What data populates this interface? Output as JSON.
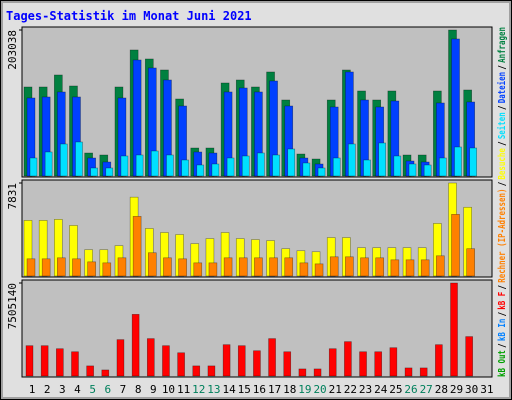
{
  "chart_data": [
    {
      "type": "bar",
      "title": "Tages-Statistik im Monat Juni 2021",
      "ylim": [
        0,
        203038
      ],
      "yticks": [
        203038
      ],
      "series": [
        {
          "name": "Anfragen",
          "color": "#008040",
          "values": [
            123799,
            123799,
            140491,
            125190,
            31993,
            29211,
            123799,
            175266,
            162747,
            147446,
            107107,
            38948,
            38948,
            129363,
            133536,
            123799,
            144664,
            105716,
            30602,
            23647,
            105716,
            147446,
            118235,
            105716,
            118235,
            29211,
            29211,
            118235,
            203038,
            119626,
            null
          ]
        },
        {
          "name": "Dateien",
          "color": "#0040ff",
          "values": [
            108498,
            109889,
            116844,
            109889,
            25038,
            19474,
            108498,
            161356,
            150228,
            133536,
            97370,
            33384,
            31993,
            116844,
            122408,
            116844,
            132145,
            97370,
            25038,
            16692,
            95979,
            144664,
            105716,
            95979,
            104325,
            20865,
            19474,
            101543,
            190567,
            102934,
            null
          ]
        },
        {
          "name": "Seiten",
          "color": "#00e0ff",
          "values": [
            25038,
            33384,
            44512,
            47294,
            11128,
            11128,
            27820,
            29211,
            34775,
            29211,
            22256,
            15301,
            16692,
            25038,
            27820,
            31993,
            29211,
            37557,
            18083,
            11128,
            25038,
            44512,
            22256,
            45903,
            27820,
            16692,
            15301,
            25038,
            40339,
            38948,
            null
          ]
        }
      ]
    },
    {
      "type": "bar",
      "ylim": [
        0,
        7831
      ],
      "yticks": [
        7831
      ],
      "series": [
        {
          "name": "Besuche",
          "color": "#ffff00",
          "values": [
            4682,
            4682,
            4767,
            4256,
            2213,
            2213,
            2554,
            6639,
            4001,
            3660,
            3490,
            2724,
            3149,
            3660,
            3149,
            3064,
            2979,
            2298,
            2128,
            2043,
            3235,
            3235,
            2383,
            2383,
            2383,
            2383,
            2383,
            4426,
            7831,
            5788,
            null
          ]
        },
        {
          "name": "Rechner (IP-Adressen)",
          "color": "#ff8000",
          "values": [
            1447,
            1447,
            1532,
            1447,
            1192,
            1107,
            1532,
            5022,
            1958,
            1532,
            1447,
            1107,
            1107,
            1532,
            1532,
            1532,
            1532,
            1532,
            1107,
            1021,
            1617,
            1617,
            1532,
            1532,
            1362,
            1362,
            1362,
            1702,
            5192,
            2298,
            null
          ]
        }
      ]
    },
    {
      "type": "bar",
      "ylim": [
        0,
        7505140
      ],
      "yticks": [
        7505140
      ],
      "categories": [
        "1",
        "2",
        "3",
        "4",
        "5",
        "6",
        "7",
        "8",
        "9",
        "10",
        "11",
        "12",
        "13",
        "14",
        "15",
        "16",
        "17",
        "18",
        "19",
        "20",
        "21",
        "22",
        "23",
        "24",
        "25",
        "26",
        "27",
        "28",
        "29",
        "30",
        "31"
      ],
      "category_colors": [
        "#000000",
        "#000000",
        "#000000",
        "#000000",
        "#00805c",
        "#00805c",
        "#000000",
        "#000000",
        "#000000",
        "#000000",
        "#000000",
        "#00805c",
        "#00805c",
        "#000000",
        "#000000",
        "#000000",
        "#000000",
        "#000000",
        "#00805c",
        "#00805c",
        "#000000",
        "#000000",
        "#000000",
        "#000000",
        "#000000",
        "#00805c",
        "#00805c",
        "#000000",
        "#000000",
        "#000000",
        "#000000"
      ],
      "series": [
        {
          "name": "kB F",
          "color": "#ff0000",
          "values": [
            2447340,
            2447340,
            2202606,
            1957872,
            815780,
            489468,
            2936808,
            4976258,
            3018386,
            2447340,
            1876294,
            815780,
            815780,
            2528918,
            2447340,
            2039450,
            3018386,
            1957872,
            571046,
            571046,
            2202606,
            2773652,
            1957872,
            1957872,
            2284184,
            652624,
            652624,
            2528918,
            7505140,
            3181542,
            null
          ]
        },
        {
          "name": "kB In",
          "color": "#0080ff",
          "values": [
            null,
            null,
            null,
            null,
            null,
            null,
            null,
            null,
            null,
            null,
            null,
            null,
            null,
            null,
            null,
            null,
            null,
            null,
            null,
            null,
            null,
            null,
            null,
            null,
            null,
            null,
            null,
            null,
            null,
            null,
            null
          ]
        },
        {
          "name": "kB Out",
          "color": "#00a000",
          "values": [
            null,
            null,
            null,
            null,
            null,
            null,
            null,
            null,
            null,
            null,
            null,
            null,
            null,
            null,
            null,
            null,
            null,
            null,
            null,
            null,
            null,
            null,
            null,
            null,
            null,
            null,
            null,
            null,
            null,
            null,
            null
          ]
        }
      ]
    }
  ],
  "legend_separator": "/"
}
